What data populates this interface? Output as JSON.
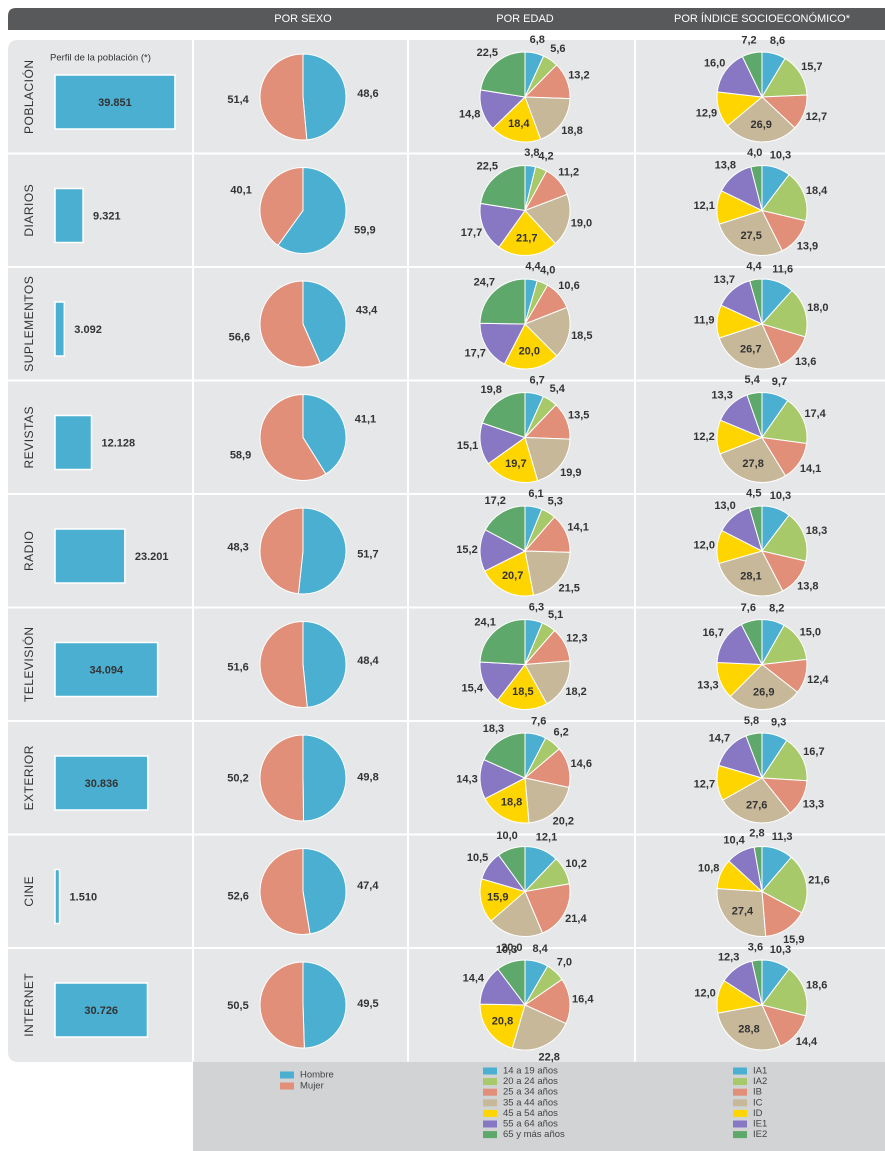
{
  "chart_data": [
    {
      "type": "bar",
      "title": "Perfil de la población (*)",
      "categories": [
        "POBLACIÓN",
        "DIARIOS",
        "SUPLEMENTOS",
        "REVISTAS",
        "RADIO",
        "TELEVISIÓN",
        "EXTERIOR",
        "CINE",
        "INTERNET"
      ],
      "values": [
        39851,
        9321,
        3092,
        12128,
        23201,
        34094,
        30836,
        1510,
        30726
      ],
      "value_labels": [
        "39.851",
        "9.321",
        "3.092",
        "12.128",
        "23.201",
        "34.094",
        "30.836",
        "1.510",
        "30.726"
      ],
      "color": "#4bafd1",
      "xlim": [
        0,
        40000
      ]
    },
    {
      "type": "pie",
      "title": "POR SEXO",
      "categories": [
        "Hombre",
        "Mujer"
      ],
      "colors": [
        "#4bafd1",
        "#e18f78"
      ],
      "series": [
        {
          "values": [
            48.6,
            51.4
          ],
          "value_labels": [
            "48,6",
            "51,4"
          ]
        },
        {
          "values": [
            59.9,
            40.1
          ],
          "value_labels": [
            "59,9",
            "40,1"
          ]
        },
        {
          "values": [
            43.4,
            56.6
          ],
          "value_labels": [
            "43,4",
            "56,6"
          ]
        },
        {
          "values": [
            41.1,
            58.9
          ],
          "value_labels": [
            "41,1",
            "58,9"
          ]
        },
        {
          "values": [
            51.7,
            48.3
          ],
          "value_labels": [
            "51,7",
            "48,3"
          ]
        },
        {
          "values": [
            48.4,
            51.6
          ],
          "value_labels": [
            "48,4",
            "51,6"
          ]
        },
        {
          "values": [
            49.8,
            50.2
          ],
          "value_labels": [
            "49,8",
            "50,2"
          ]
        },
        {
          "values": [
            47.4,
            52.6
          ],
          "value_labels": [
            "47,4",
            "52,6"
          ]
        },
        {
          "values": [
            49.5,
            50.5
          ],
          "value_labels": [
            "49,5",
            "50,5"
          ]
        }
      ]
    },
    {
      "type": "pie",
      "title": "POR EDAD",
      "categories": [
        "14 a 19 años",
        "20 a 24 años",
        "25 a 34 años",
        "35 a 44 años",
        "45 a 54 años",
        "55 a 64 años",
        "65 y más años"
      ],
      "colors": [
        "#4bafd1",
        "#a8c96a",
        "#e18f78",
        "#c7b89a",
        "#ffd500",
        "#8878c3",
        "#5fa86b"
      ],
      "series": [
        {
          "values": [
            6.8,
            5.6,
            13.2,
            18.8,
            18.4,
            14.8,
            22.5
          ],
          "value_labels": [
            "6,8",
            "5,6",
            "13,2",
            "18,8",
            "18,4",
            "14,8",
            "22,5"
          ]
        },
        {
          "values": [
            3.8,
            4.2,
            11.2,
            19.0,
            21.7,
            17.7,
            22.5
          ],
          "value_labels": [
            "3,8",
            "4,2",
            "11,2",
            "19,0",
            "21,7",
            "17,7",
            "22,5"
          ]
        },
        {
          "values": [
            4.4,
            4.0,
            10.6,
            18.5,
            20.0,
            17.7,
            24.7
          ],
          "value_labels": [
            "4,4",
            "4,0",
            "10,6",
            "18,5",
            "20,0",
            "17,7",
            "24,7"
          ]
        },
        {
          "values": [
            6.7,
            5.4,
            13.5,
            19.9,
            19.7,
            15.1,
            19.8
          ],
          "value_labels": [
            "6,7",
            "5,4",
            "13,5",
            "19,9",
            "19,7",
            "15,1",
            "19,8"
          ]
        },
        {
          "values": [
            6.1,
            5.3,
            14.1,
            21.5,
            20.7,
            15.2,
            17.2
          ],
          "value_labels": [
            "6,1",
            "5,3",
            "14,1",
            "21,5",
            "20,7",
            "15,2",
            "17,2"
          ]
        },
        {
          "values": [
            6.3,
            5.1,
            12.3,
            18.2,
            18.5,
            15.4,
            24.1
          ],
          "value_labels": [
            "6,3",
            "5,1",
            "12,3",
            "18,2",
            "18,5",
            "15,4",
            "24,1"
          ]
        },
        {
          "values": [
            7.6,
            6.2,
            14.6,
            20.2,
            18.8,
            14.3,
            18.3
          ],
          "value_labels": [
            "7,6",
            "6,2",
            "14,6",
            "20,2",
            "18,8",
            "14,3",
            "18,3"
          ]
        },
        {
          "values": [
            12.1,
            10.2,
            21.4,
            20.0,
            15.9,
            10.5,
            10.0
          ],
          "value_labels": [
            "12,1",
            "10,2",
            "21,4",
            "20,0",
            "15,9",
            "10,5",
            "10,0"
          ]
        },
        {
          "values": [
            8.4,
            7.0,
            16.4,
            22.8,
            20.8,
            14.4,
            10.3
          ],
          "value_labels": [
            "8,4",
            "7,0",
            "16,4",
            "22,8",
            "20,8",
            "14,4",
            "10,3"
          ]
        }
      ]
    },
    {
      "type": "pie",
      "title": "POR ÍNDICE SOCIOECONÓMICO*",
      "categories": [
        "IA1",
        "IA2",
        "IB",
        "IC",
        "ID",
        "IE1",
        "IE2"
      ],
      "colors": [
        "#4bafd1",
        "#a8c96a",
        "#e18f78",
        "#c7b89a",
        "#ffd500",
        "#8878c3",
        "#5fa86b"
      ],
      "series": [
        {
          "values": [
            8.6,
            15.7,
            12.7,
            26.9,
            12.9,
            16.0,
            7.2
          ],
          "value_labels": [
            "8,6",
            "15,7",
            "12,7",
            "26,9",
            "12,9",
            "16,0",
            "7,2"
          ]
        },
        {
          "values": [
            10.3,
            18.4,
            13.9,
            27.5,
            12.1,
            13.8,
            4.0
          ],
          "value_labels": [
            "10,3",
            "18,4",
            "13,9",
            "27,5",
            "12,1",
            "13,8",
            "4,0"
          ]
        },
        {
          "values": [
            11.6,
            18.0,
            13.6,
            26.7,
            11.9,
            13.7,
            4.4
          ],
          "value_labels": [
            "11,6",
            "18,0",
            "13,6",
            "26,7",
            "11,9",
            "13,7",
            "4,4"
          ]
        },
        {
          "values": [
            9.7,
            17.4,
            14.1,
            27.8,
            12.2,
            13.3,
            5.4
          ],
          "value_labels": [
            "9,7",
            "17,4",
            "14,1",
            "27,8",
            "12,2",
            "13,3",
            "5,4"
          ]
        },
        {
          "values": [
            10.3,
            18.3,
            13.8,
            28.1,
            12.0,
            13.0,
            4.5
          ],
          "value_labels": [
            "10,3",
            "18,3",
            "13,8",
            "28,1",
            "12,0",
            "13,0",
            "4,5"
          ]
        },
        {
          "values": [
            8.2,
            15.0,
            12.4,
            26.9,
            13.3,
            16.7,
            7.6
          ],
          "value_labels": [
            "8,2",
            "15,0",
            "12,4",
            "26,9",
            "13,3",
            "16,7",
            "7,6"
          ]
        },
        {
          "values": [
            9.3,
            16.7,
            13.3,
            27.6,
            12.7,
            14.7,
            5.8
          ],
          "value_labels": [
            "9,3",
            "16,7",
            "13,3",
            "27,6",
            "12,7",
            "14,7",
            "5,8"
          ]
        },
        {
          "values": [
            11.3,
            21.6,
            15.9,
            27.4,
            10.8,
            10.4,
            2.8
          ],
          "value_labels": [
            "11,3",
            "21,6",
            "15,9",
            "27,4",
            "10,8",
            "10,4",
            "2,8"
          ]
        },
        {
          "values": [
            10.3,
            18.6,
            14.4,
            28.8,
            12.0,
            12.3,
            3.6
          ],
          "value_labels": [
            "10,3",
            "18,6",
            "14,4",
            "28,8",
            "12,0",
            "12,3",
            "3,6"
          ]
        }
      ]
    }
  ]
}
